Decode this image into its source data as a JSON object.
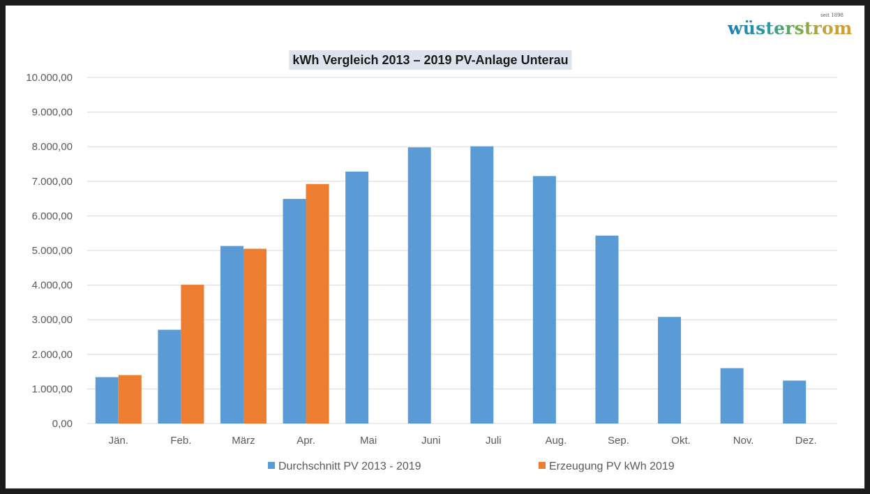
{
  "logo": {
    "text": "wüsterstrom",
    "since": "seit 1898"
  },
  "chart_data": {
    "type": "bar",
    "title": "kWh Vergleich 2013 – 2019 PV-Anlage Unterau",
    "xlabel": "",
    "ylabel": "",
    "ylim": [
      0,
      10000
    ],
    "yticks": [
      0,
      1000,
      2000,
      3000,
      4000,
      5000,
      6000,
      7000,
      8000,
      9000,
      10000
    ],
    "ytick_labels": [
      "0,00",
      "1.000,00",
      "2.000,00",
      "3.000,00",
      "4.000,00",
      "5.000,00",
      "6.000,00",
      "7.000,00",
      "8.000,00",
      "9.000,00",
      "10.000,00"
    ],
    "grid": true,
    "legend_position": "bottom",
    "categories": [
      "Jän.",
      "Feb.",
      "März",
      "Apr.",
      "Mai",
      "Juni",
      "Juli",
      "Aug.",
      "Sep.",
      "Okt.",
      "Nov.",
      "Dez."
    ],
    "series": [
      {
        "name": "Durchschnitt PV 2013 - 2019",
        "color": "#5b9bd5",
        "values": [
          1340,
          2710,
          5130,
          6490,
          7280,
          7980,
          8010,
          7150,
          5430,
          3080,
          1600,
          1240
        ]
      },
      {
        "name": "Erzeugung PV kWh 2019",
        "color": "#ed7d31",
        "values": [
          1400,
          4010,
          5050,
          6920,
          null,
          null,
          null,
          null,
          null,
          null,
          null,
          null
        ]
      }
    ],
    "title_background": "#dce3ec",
    "gridline_color": "#d9d9d9"
  }
}
